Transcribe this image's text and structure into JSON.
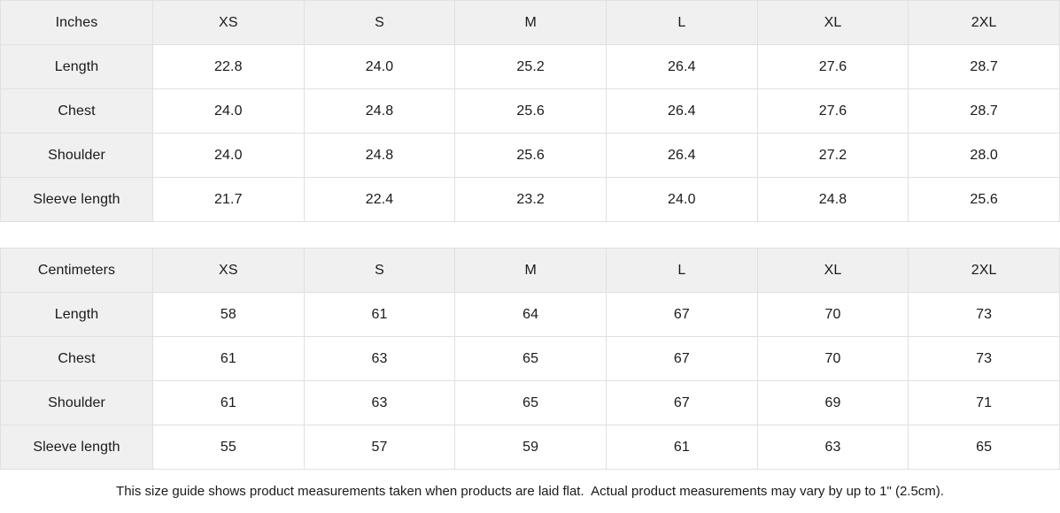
{
  "tables": [
    {
      "unit_label": "Inches",
      "sizes": [
        "XS",
        "S",
        "M",
        "L",
        "XL",
        "2XL"
      ],
      "rows": [
        {
          "label": "Length",
          "values": [
            "22.8",
            "24.0",
            "25.2",
            "26.4",
            "27.6",
            "28.7"
          ]
        },
        {
          "label": "Chest",
          "values": [
            "24.0",
            "24.8",
            "25.6",
            "26.4",
            "27.6",
            "28.7"
          ]
        },
        {
          "label": "Shoulder",
          "values": [
            "24.0",
            "24.8",
            "25.6",
            "26.4",
            "27.2",
            "28.0"
          ]
        },
        {
          "label": "Sleeve length",
          "values": [
            "21.7",
            "22.4",
            "23.2",
            "24.0",
            "24.8",
            "25.6"
          ]
        }
      ]
    },
    {
      "unit_label": "Centimeters",
      "sizes": [
        "XS",
        "S",
        "M",
        "L",
        "XL",
        "2XL"
      ],
      "rows": [
        {
          "label": "Length",
          "values": [
            "58",
            "61",
            "64",
            "67",
            "70",
            "73"
          ]
        },
        {
          "label": "Chest",
          "values": [
            "61",
            "63",
            "65",
            "67",
            "70",
            "73"
          ]
        },
        {
          "label": "Shoulder",
          "values": [
            "61",
            "63",
            "65",
            "67",
            "69",
            "71"
          ]
        },
        {
          "label": "Sleeve length",
          "values": [
            "55",
            "57",
            "59",
            "61",
            "63",
            "65"
          ]
        }
      ]
    }
  ],
  "footer_note": "This size guide shows product measurements taken when products are laid flat.  Actual product measurements may vary by up to 1\" (2.5cm).",
  "colors": {
    "header_background": "#f0f0f0",
    "border": "#e0e0e0",
    "text": "#1a1a1a"
  },
  "chart_data": [
    {
      "type": "table",
      "title": "Size guide (Inches)",
      "columns": [
        "Inches",
        "XS",
        "S",
        "M",
        "L",
        "XL",
        "2XL"
      ],
      "rows": [
        [
          "Length",
          22.8,
          24.0,
          25.2,
          26.4,
          27.6,
          28.7
        ],
        [
          "Chest",
          24.0,
          24.8,
          25.6,
          26.4,
          27.6,
          28.7
        ],
        [
          "Shoulder",
          24.0,
          24.8,
          25.6,
          26.4,
          27.2,
          28.0
        ],
        [
          "Sleeve length",
          21.7,
          22.4,
          23.2,
          24.0,
          24.8,
          25.6
        ]
      ]
    },
    {
      "type": "table",
      "title": "Size guide (Centimeters)",
      "columns": [
        "Centimeters",
        "XS",
        "S",
        "M",
        "L",
        "XL",
        "2XL"
      ],
      "rows": [
        [
          "Length",
          58,
          61,
          64,
          67,
          70,
          73
        ],
        [
          "Chest",
          61,
          63,
          65,
          67,
          70,
          73
        ],
        [
          "Shoulder",
          61,
          63,
          65,
          67,
          69,
          71
        ],
        [
          "Sleeve length",
          55,
          57,
          59,
          61,
          63,
          65
        ]
      ]
    }
  ]
}
